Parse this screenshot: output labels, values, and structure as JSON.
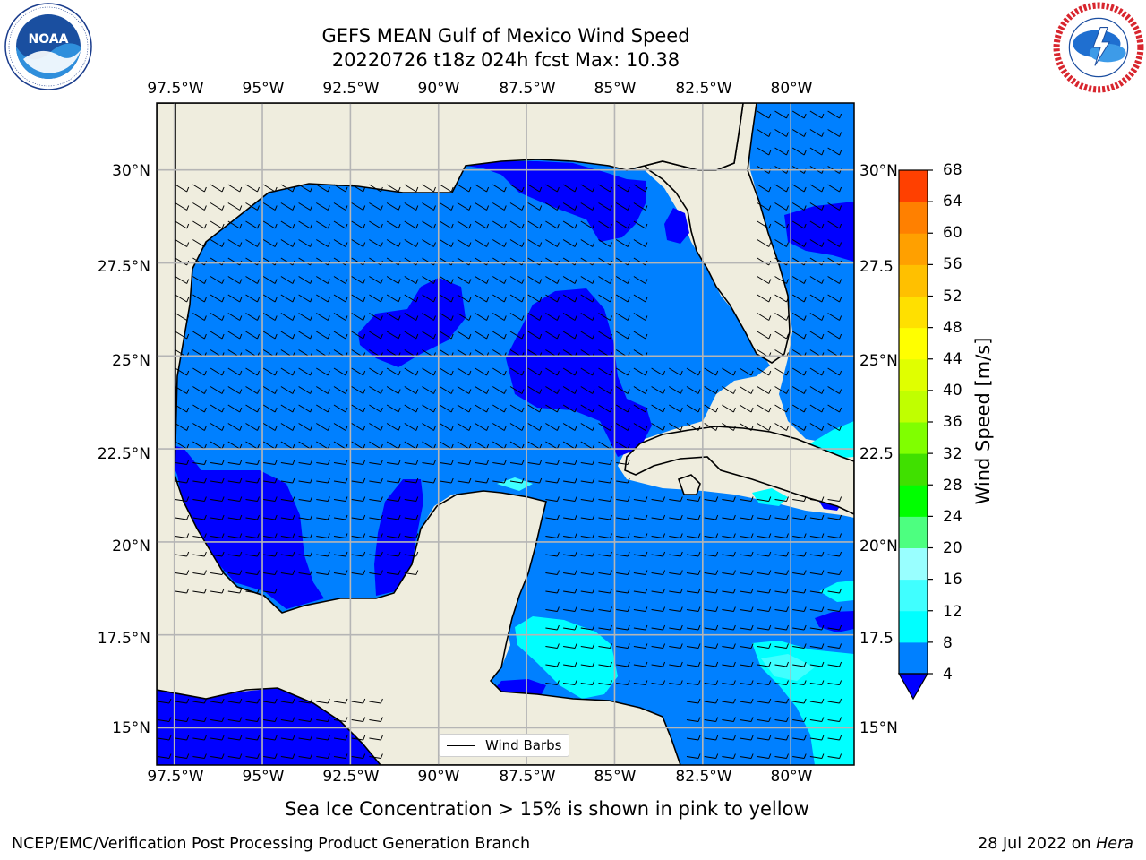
{
  "header": {
    "title_line1": "GEFS MEAN Gulf of Mexico Wind Speed",
    "title_line2": "20220726 t18z 024h fcst   Max: 10.38"
  },
  "logos": {
    "left": {
      "icon": "noaa-logo",
      "text": "NOAA",
      "ring_text": "NATIONAL OCEANIC AND ATMOSPHERIC ADMINISTRATION · U.S. DEPARTMENT OF COMMERCE"
    },
    "right": {
      "icon": "nws-logo",
      "ring_text": "NATIONAL WEATHER SERVICE"
    }
  },
  "map": {
    "lon_labels": [
      "97.5°W",
      "95°W",
      "92.5°W",
      "90°W",
      "87.5°W",
      "85°W",
      "82.5°W",
      "80°W"
    ],
    "lat_labels_left": [
      "30°N",
      "27.5°N",
      "25°N",
      "22.5°N",
      "20°N",
      "17.5°N",
      "15°N"
    ],
    "lat_labels_right": [
      "30°N",
      "27.5",
      "25°N",
      "22.5",
      "20°N",
      "17.5",
      "15°N"
    ],
    "lon_range": [
      -98,
      -78.2
    ],
    "lat_range": [
      14,
      31.8
    ],
    "land_color": "#efedde",
    "ocean_base_color": "#0080ff",
    "legend_label": "Wind Barbs"
  },
  "colorbar": {
    "label": "Wind Speed [m/s]",
    "ticks": [
      "4",
      "8",
      "12",
      "16",
      "20",
      "24",
      "28",
      "32",
      "36",
      "40",
      "44",
      "48",
      "52",
      "56",
      "60",
      "64",
      "68"
    ],
    "colors": [
      "#0080ff",
      "#00ffff",
      "#40ffff",
      "#99ffff",
      "#4dff80",
      "#00ff00",
      "#40e000",
      "#80ff00",
      "#c0ff00",
      "#e0ff00",
      "#ffff00",
      "#ffe000",
      "#ffc000",
      "#ffa000",
      "#ff8000",
      "#ff4000",
      "#ff0000"
    ],
    "extend_min_color": "#0000ff"
  },
  "caption": "Sea Ice Concentration > 15% is shown in pink to yellow",
  "footer": {
    "left": "NCEP/EMC/Verification Post Processing Product Generation Branch",
    "right_date": "28 Jul 2022 on ",
    "right_host": "Hera"
  }
}
